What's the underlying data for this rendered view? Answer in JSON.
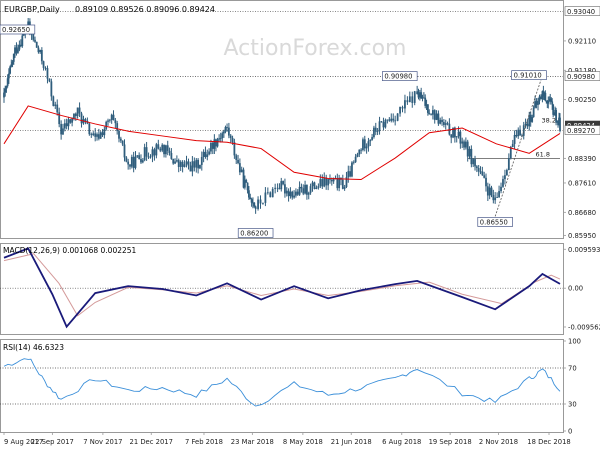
{
  "header": {
    "symbol_label": "EURGBP,Daily",
    "ohlc": "0.89109 0.89526 0.89096 0.89424"
  },
  "watermark": "ActionForex.com",
  "colors": {
    "bars": "#2f5d7c",
    "sma": "#e00000",
    "macd": "#1a1a7a",
    "macd_signal": "#d49a9a",
    "rsi": "#3b8fd9",
    "dotted": "#444444",
    "fib_line": "#555555",
    "trendline": "#555555",
    "last_price_bg": "#3a3a3a",
    "grid_border": "#999999",
    "watermark": "#d9d9d9",
    "text": "#222222"
  },
  "chart_data": [
    {
      "panel": "price",
      "type": "candlestick",
      "ylim": [
        0.8593,
        0.9328
      ],
      "tick_labels": [
        "0.93040",
        "0.92110",
        "0.91180",
        "0.90980",
        "0.90250",
        "0.89424",
        "0.89270",
        "0.88390",
        "0.87610",
        "0.86680",
        "0.85950"
      ],
      "levels": [
        {
          "value": 0.9304,
          "label": "0.93040",
          "style": "dotted"
        },
        {
          "value": 0.9098,
          "label": "0.90980",
          "style": "dotted"
        },
        {
          "value": 0.8927,
          "label": "0.89270",
          "style": "dotted"
        },
        {
          "value": 0.8839,
          "label": "61.8",
          "style": "fib"
        }
      ],
      "last_price": {
        "value": 0.89424,
        "label": "0.89424"
      },
      "annotations": [
        {
          "text": "0.92650",
          "x": "9 Aug 2017",
          "y": 0.9265
        },
        {
          "text": "0.86200",
          "x": "26 Mar 2018",
          "y": 0.862
        },
        {
          "text": "0.90980",
          "x": "20 Aug 2018",
          "y": 0.9098
        },
        {
          "text": "0.86550",
          "x": "30 Oct 2018",
          "y": 0.8655
        },
        {
          "text": "0.91010",
          "x": "12 Dec 2018",
          "y": 0.9101
        },
        {
          "text": "38.2",
          "x": "28 Dec 2018",
          "y": 0.8947
        }
      ],
      "series": [
        {
          "name": "EURGBP",
          "x": [
            "9 Aug 2017",
            "19 Aug 2017",
            "31 Aug 2017",
            "14 Sep 2017",
            "30 Sep 2017",
            "15 Oct 2017",
            "31 Oct 2017",
            "15 Nov 2017",
            "30 Nov 2017",
            "15 Dec 2017",
            "31 Dec 2017",
            "15 Jan 2018",
            "31 Jan 2018",
            "15 Feb 2018",
            "28 Feb 2018",
            "15 Mar 2018",
            "26 Mar 2018",
            "15 Apr 2018",
            "30 Apr 2018",
            "15 May 2018",
            "31 May 2018",
            "15 Jun 2018",
            "30 Jun 2018",
            "15 Jul 2018",
            "31 Jul 2018",
            "20 Aug 2018",
            "31 Aug 2018",
            "15 Sep 2018",
            "30 Sep 2018",
            "15 Oct 2018",
            "30 Oct 2018",
            "15 Nov 2018",
            "30 Nov 2018",
            "12 Dec 2018",
            "20 Dec 2018",
            "28 Dec 2018"
          ],
          "close": [
            0.9032,
            0.918,
            0.9255,
            0.9138,
            0.8925,
            0.8985,
            0.8895,
            0.8965,
            0.8815,
            0.8855,
            0.8875,
            0.8815,
            0.8815,
            0.8885,
            0.8935,
            0.8765,
            0.8685,
            0.8755,
            0.8725,
            0.8745,
            0.8765,
            0.8755,
            0.8875,
            0.8935,
            0.8975,
            0.9045,
            0.8995,
            0.8935,
            0.8895,
            0.8795,
            0.8695,
            0.8885,
            0.8965,
            0.9045,
            0.9005,
            0.8942
          ]
        },
        {
          "name": "SMA",
          "x": [
            "9 Aug 2017",
            "31 Aug 2017",
            "30 Sep 2017",
            "31 Oct 2017",
            "30 Nov 2017",
            "31 Dec 2017",
            "31 Jan 2018",
            "28 Feb 2018",
            "31 Mar 2018",
            "30 Apr 2018",
            "31 May 2018",
            "30 Jun 2018",
            "31 Jul 2018",
            "31 Aug 2018",
            "30 Sep 2018",
            "31 Oct 2018",
            "30 Nov 2018",
            "28 Dec 2018"
          ],
          "values": [
            0.8885,
            0.9005,
            0.8975,
            0.8948,
            0.8925,
            0.891,
            0.8895,
            0.889,
            0.887,
            0.8795,
            0.8775,
            0.8772,
            0.884,
            0.892,
            0.8935,
            0.8885,
            0.8855,
            0.8918
          ]
        }
      ]
    },
    {
      "panel": "macd",
      "type": "line",
      "title": "MACD(12,26,9) 0.001068 0.002251",
      "ylim": [
        -0.0108,
        0.0104
      ],
      "tick_labels": [
        "0.009593",
        "0.00",
        "-0.009562"
      ],
      "series": [
        {
          "name": "MACD",
          "x": [
            "9 Aug 2017",
            "31 Aug 2017",
            "22 Sep 2017",
            "5 Oct 2017",
            "31 Oct 2017",
            "30 Nov 2017",
            "31 Dec 2017",
            "31 Jan 2018",
            "28 Feb 2018",
            "31 Mar 2018",
            "30 Apr 2018",
            "31 May 2018",
            "30 Jun 2018",
            "31 Jul 2018",
            "20 Aug 2018",
            "30 Sep 2018",
            "30 Oct 2018",
            "30 Nov 2018",
            "12 Dec 2018",
            "28 Dec 2018"
          ],
          "values": [
            0.0075,
            0.0098,
            -0.0015,
            -0.0095,
            -0.0012,
            0.0005,
            -0.0002,
            -0.0018,
            0.0012,
            -0.0028,
            0.0005,
            -0.0025,
            -0.0005,
            0.001,
            0.0018,
            -0.0022,
            -0.0052,
            0.0005,
            0.0035,
            0.001068
          ]
        },
        {
          "name": "Signal",
          "x": [
            "9 Aug 2017",
            "5 Sep 2017",
            "28 Sep 2017",
            "15 Oct 2017",
            "31 Oct 2017",
            "30 Nov 2017",
            "31 Dec 2017",
            "31 Jan 2018",
            "28 Feb 2018",
            "31 Mar 2018",
            "30 Apr 2018",
            "31 May 2018",
            "30 Jun 2018",
            "31 Jul 2018",
            "31 Aug 2018",
            "30 Sep 2018",
            "5 Nov 2018",
            "5 Dec 2018",
            "20 Dec 2018",
            "28 Dec 2018"
          ],
          "values": [
            0.0068,
            0.0085,
            0.0012,
            -0.0068,
            -0.0035,
            0.0002,
            -0.0004,
            -0.0012,
            0.0006,
            -0.0018,
            -0.0002,
            -0.0018,
            -0.0008,
            0.0006,
            0.0015,
            -0.0015,
            -0.0038,
            0.0015,
            0.0032,
            0.002251
          ]
        }
      ]
    },
    {
      "panel": "rsi",
      "type": "line",
      "title": "RSI(14) 46.6323",
      "ylim": [
        0,
        100
      ],
      "tick_labels": [
        "100",
        "70",
        "30",
        "0"
      ],
      "levels": [
        70,
        30
      ],
      "series": [
        {
          "name": "RSI",
          "x": [
            "9 Aug 2017",
            "31 Aug 2017",
            "15 Sep 2017",
            "30 Sep 2017",
            "31 Oct 2017",
            "30 Nov 2017",
            "31 Dec 2017",
            "31 Jan 2018",
            "28 Feb 2018",
            "26 Mar 2018",
            "30 Apr 2018",
            "31 May 2018",
            "30 Jun 2018",
            "31 Jul 2018",
            "20 Aug 2018",
            "30 Sep 2018",
            "30 Oct 2018",
            "30 Nov 2018",
            "12 Dec 2018",
            "28 Dec 2018"
          ],
          "values": [
            72,
            82,
            55,
            35,
            58,
            45,
            48,
            40,
            58,
            28,
            52,
            40,
            48,
            58,
            70,
            42,
            32,
            58,
            68,
            46.6323
          ]
        }
      ]
    }
  ],
  "x_axis": {
    "labels": [
      "9 Aug 2017",
      "22 Sep 2017",
      "7 Nov 2017",
      "21 Dec 2017",
      "7 Feb 2018",
      "23 Mar 2018",
      "8 May 2018",
      "21 Jun 2018",
      "6 Aug 2018",
      "19 Sep 2018",
      "2 Nov 2018",
      "18 Dec 2018"
    ]
  }
}
